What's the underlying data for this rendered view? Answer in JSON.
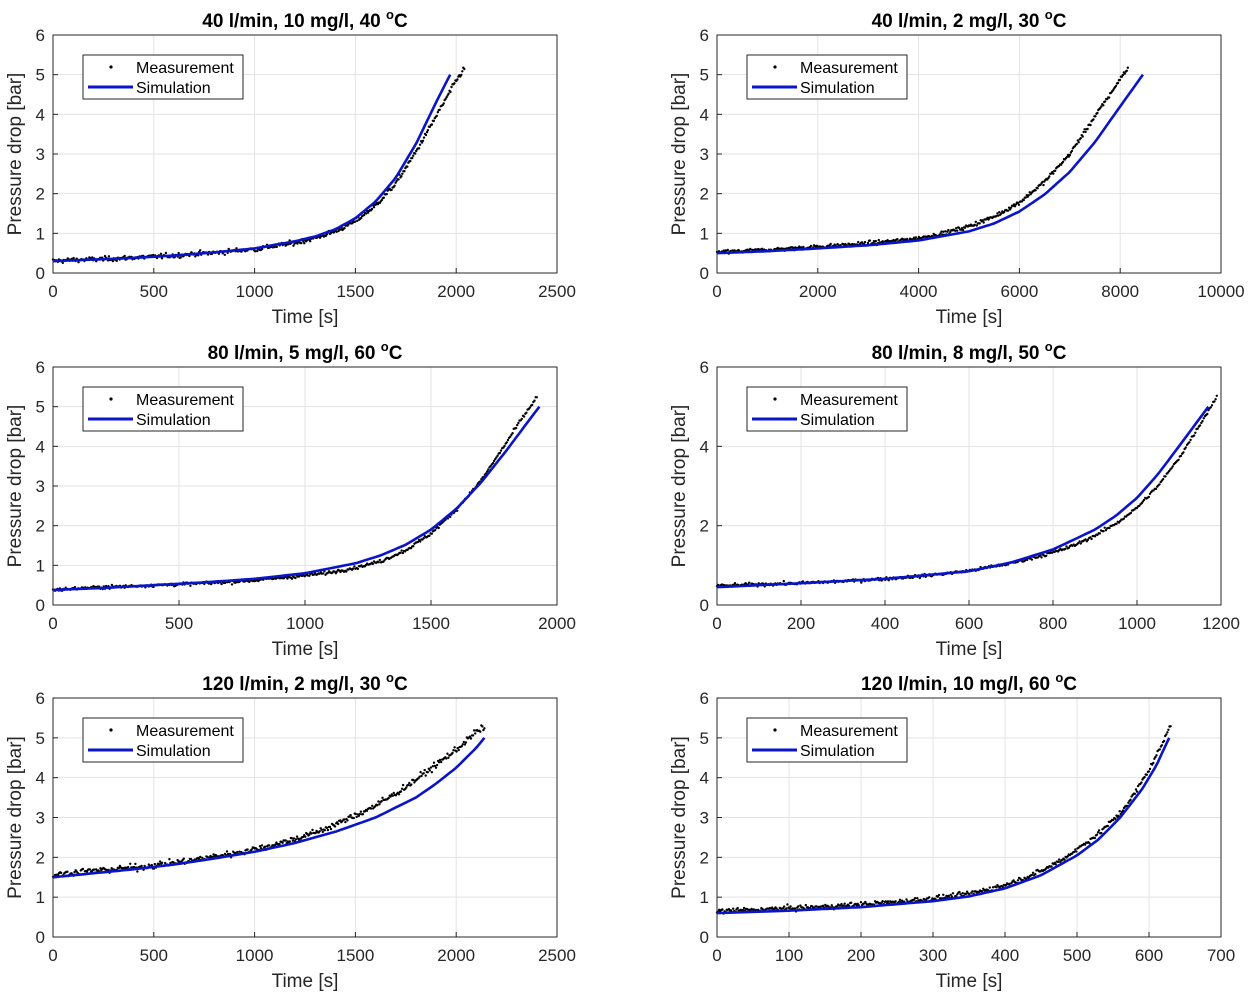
{
  "chart_data": [
    {
      "type": "scatter",
      "title": "40 l/min, 10 mg/l, 40",
      "title_sup": "o",
      "title_unit": "C",
      "xlabel": "Time [s]",
      "ylabel": "Pressure drop [bar]",
      "xlim": [
        0,
        2500
      ],
      "ylim": [
        0,
        6
      ],
      "xticks": [
        0,
        500,
        1000,
        1500,
        2000,
        2500
      ],
      "yticks": [
        0,
        1,
        2,
        3,
        4,
        5,
        6
      ],
      "grid": true,
      "legend_position": "top-left",
      "series": [
        {
          "name": "Measurement",
          "kind": "points",
          "color": "#000000",
          "x": [
            0,
            100,
            200,
            300,
            400,
            500,
            600,
            700,
            800,
            900,
            1000,
            1100,
            1200,
            1300,
            1400,
            1500,
            1600,
            1700,
            1800,
            1850,
            1900,
            1950,
            2000,
            2040
          ],
          "y": [
            0.3,
            0.33,
            0.34,
            0.36,
            0.39,
            0.41,
            0.44,
            0.48,
            0.51,
            0.56,
            0.6,
            0.68,
            0.76,
            0.88,
            1.05,
            1.3,
            1.7,
            2.25,
            3.05,
            3.5,
            3.95,
            4.4,
            4.85,
            5.15
          ],
          "noise": 0.06
        },
        {
          "name": "Simulation",
          "kind": "line",
          "color": "#0a14c8",
          "x": [
            0,
            200,
            400,
            600,
            800,
            1000,
            1200,
            1300,
            1400,
            1500,
            1600,
            1700,
            1800,
            1900,
            1970
          ],
          "y": [
            0.3,
            0.34,
            0.38,
            0.44,
            0.52,
            0.62,
            0.8,
            0.92,
            1.1,
            1.38,
            1.8,
            2.4,
            3.25,
            4.3,
            5.0
          ]
        }
      ]
    },
    {
      "type": "scatter",
      "title": "40 l/min, 2 mg/l, 30",
      "title_sup": "o",
      "title_unit": "C",
      "xlabel": "Time [s]",
      "ylabel": "Pressure drop [bar]",
      "xlim": [
        0,
        10000
      ],
      "ylim": [
        0,
        6
      ],
      "xticks": [
        0,
        2000,
        4000,
        6000,
        8000,
        10000
      ],
      "yticks": [
        0,
        1,
        2,
        3,
        4,
        5,
        6
      ],
      "grid": true,
      "legend_position": "top-left",
      "series": [
        {
          "name": "Measurement",
          "kind": "points",
          "color": "#000000",
          "x": [
            0,
            500,
            1000,
            1500,
            2000,
            2500,
            3000,
            3500,
            4000,
            4500,
            5000,
            5500,
            6000,
            6500,
            7000,
            7500,
            7800,
            8000,
            8150
          ],
          "y": [
            0.52,
            0.55,
            0.58,
            0.62,
            0.66,
            0.7,
            0.75,
            0.8,
            0.88,
            1.0,
            1.18,
            1.42,
            1.78,
            2.3,
            3.0,
            3.95,
            4.5,
            4.9,
            5.15
          ],
          "noise": 0.05
        },
        {
          "name": "Simulation",
          "kind": "line",
          "color": "#0a14c8",
          "x": [
            0,
            1000,
            2000,
            3000,
            4000,
            5000,
            5500,
            6000,
            6500,
            7000,
            7500,
            8000,
            8450
          ],
          "y": [
            0.5,
            0.55,
            0.62,
            0.7,
            0.82,
            1.05,
            1.25,
            1.55,
            1.98,
            2.55,
            3.3,
            4.2,
            5.0
          ]
        }
      ]
    },
    {
      "type": "scatter",
      "title": "80 l/min, 5 mg/l, 60",
      "title_sup": "o",
      "title_unit": "C",
      "xlabel": "Time [s]",
      "ylabel": "Pressure drop [bar]",
      "xlim": [
        0,
        2000
      ],
      "ylim": [
        0,
        6
      ],
      "xticks": [
        0,
        500,
        1000,
        1500,
        2000
      ],
      "yticks": [
        0,
        1,
        2,
        3,
        4,
        5,
        6
      ],
      "grid": true,
      "legend_position": "top-left",
      "series": [
        {
          "name": "Measurement",
          "kind": "points",
          "color": "#000000",
          "x": [
            0,
            100,
            200,
            300,
            400,
            500,
            600,
            700,
            800,
            900,
            1000,
            1100,
            1200,
            1300,
            1400,
            1500,
            1600,
            1700,
            1800,
            1850,
            1900,
            1920
          ],
          "y": [
            0.38,
            0.42,
            0.45,
            0.47,
            0.5,
            0.52,
            0.55,
            0.58,
            0.62,
            0.68,
            0.74,
            0.82,
            0.94,
            1.1,
            1.38,
            1.8,
            2.4,
            3.15,
            4.1,
            4.6,
            5.05,
            5.25
          ],
          "noise": 0.04
        },
        {
          "name": "Simulation",
          "kind": "line",
          "color": "#0a14c8",
          "x": [
            0,
            200,
            400,
            600,
            800,
            1000,
            1200,
            1300,
            1400,
            1500,
            1600,
            1700,
            1800,
            1900,
            1930
          ],
          "y": [
            0.38,
            0.43,
            0.5,
            0.57,
            0.66,
            0.8,
            1.05,
            1.25,
            1.52,
            1.9,
            2.42,
            3.1,
            3.9,
            4.75,
            5.0
          ]
        }
      ]
    },
    {
      "type": "scatter",
      "title": "80 l/min, 8 mg/l, 50",
      "title_sup": "o",
      "title_unit": "C",
      "xlabel": "Time [s]",
      "ylabel": "Pressure drop [bar]",
      "xlim": [
        0,
        1200
      ],
      "ylim": [
        0,
        6
      ],
      "xticks": [
        0,
        200,
        400,
        600,
        800,
        1000,
        1200
      ],
      "yticks": [
        0,
        2,
        4,
        6
      ],
      "grid": true,
      "legend_position": "top-left",
      "series": [
        {
          "name": "Measurement",
          "kind": "points",
          "color": "#000000",
          "x": [
            0,
            100,
            200,
            300,
            400,
            500,
            600,
            700,
            800,
            850,
            900,
            950,
            1000,
            1050,
            1100,
            1150,
            1190
          ],
          "y": [
            0.48,
            0.52,
            0.55,
            0.6,
            0.66,
            0.74,
            0.86,
            1.05,
            1.32,
            1.5,
            1.75,
            2.05,
            2.45,
            3.0,
            3.7,
            4.55,
            5.25
          ],
          "noise": 0.04
        },
        {
          "name": "Simulation",
          "kind": "line",
          "color": "#0a14c8",
          "x": [
            0,
            200,
            400,
            600,
            700,
            800,
            900,
            950,
            1000,
            1050,
            1100,
            1170
          ],
          "y": [
            0.45,
            0.55,
            0.66,
            0.85,
            1.07,
            1.4,
            1.9,
            2.25,
            2.7,
            3.3,
            4.0,
            5.0
          ]
        }
      ]
    },
    {
      "type": "scatter",
      "title": "120 l/min, 2 mg/l, 30",
      "title_sup": "o",
      "title_unit": "C",
      "xlabel": "Time [s]",
      "ylabel": "Pressure drop [bar]",
      "xlim": [
        0,
        2500
      ],
      "ylim": [
        0,
        6
      ],
      "xticks": [
        0,
        500,
        1000,
        1500,
        2000,
        2500
      ],
      "yticks": [
        0,
        1,
        2,
        3,
        4,
        5,
        6
      ],
      "grid": true,
      "legend_position": "top-left",
      "series": [
        {
          "name": "Measurement",
          "kind": "points",
          "color": "#000000",
          "x": [
            0,
            100,
            200,
            300,
            400,
            500,
            600,
            700,
            800,
            900,
            1000,
            1100,
            1200,
            1300,
            1400,
            1500,
            1600,
            1700,
            1800,
            1900,
            2000,
            2100,
            2140
          ],
          "y": [
            1.55,
            1.62,
            1.66,
            1.7,
            1.74,
            1.8,
            1.86,
            1.93,
            2.02,
            2.1,
            2.2,
            2.32,
            2.46,
            2.62,
            2.82,
            3.05,
            3.3,
            3.6,
            3.95,
            4.32,
            4.7,
            5.15,
            5.25
          ],
          "noise": 0.08
        },
        {
          "name": "Simulation",
          "kind": "line",
          "color": "#0a14c8",
          "x": [
            0,
            200,
            400,
            600,
            800,
            1000,
            1200,
            1400,
            1600,
            1800,
            1900,
            2000,
            2100,
            2140
          ],
          "y": [
            1.5,
            1.6,
            1.7,
            1.82,
            1.97,
            2.14,
            2.36,
            2.64,
            3.0,
            3.5,
            3.85,
            4.25,
            4.75,
            5.0
          ]
        }
      ]
    },
    {
      "type": "scatter",
      "title": "120 l/min, 10 mg/l, 60",
      "title_sup": "o",
      "title_unit": "C",
      "xlabel": "Time [s]",
      "ylabel": "Pressure drop [bar]",
      "xlim": [
        0,
        700
      ],
      "ylim": [
        0,
        6
      ],
      "xticks": [
        0,
        100,
        200,
        300,
        400,
        500,
        600,
        700
      ],
      "yticks": [
        0,
        1,
        2,
        3,
        4,
        5,
        6
      ],
      "grid": true,
      "legend_position": "top-left",
      "series": [
        {
          "name": "Measurement",
          "kind": "points",
          "color": "#000000",
          "x": [
            0,
            50,
            100,
            150,
            200,
            250,
            300,
            350,
            400,
            450,
            480,
            500,
            530,
            560,
            580,
            600,
            620,
            630
          ],
          "y": [
            0.65,
            0.68,
            0.72,
            0.76,
            0.82,
            0.88,
            0.97,
            1.08,
            1.3,
            1.65,
            1.95,
            2.2,
            2.6,
            3.1,
            3.6,
            4.2,
            4.9,
            5.35
          ],
          "noise": 0.06
        },
        {
          "name": "Simulation",
          "kind": "line",
          "color": "#0a14c8",
          "x": [
            0,
            100,
            200,
            300,
            350,
            400,
            450,
            500,
            530,
            560,
            590,
            610,
            628
          ],
          "y": [
            0.6,
            0.66,
            0.75,
            0.9,
            1.02,
            1.22,
            1.55,
            2.05,
            2.45,
            3.0,
            3.7,
            4.3,
            5.0
          ]
        }
      ]
    }
  ]
}
